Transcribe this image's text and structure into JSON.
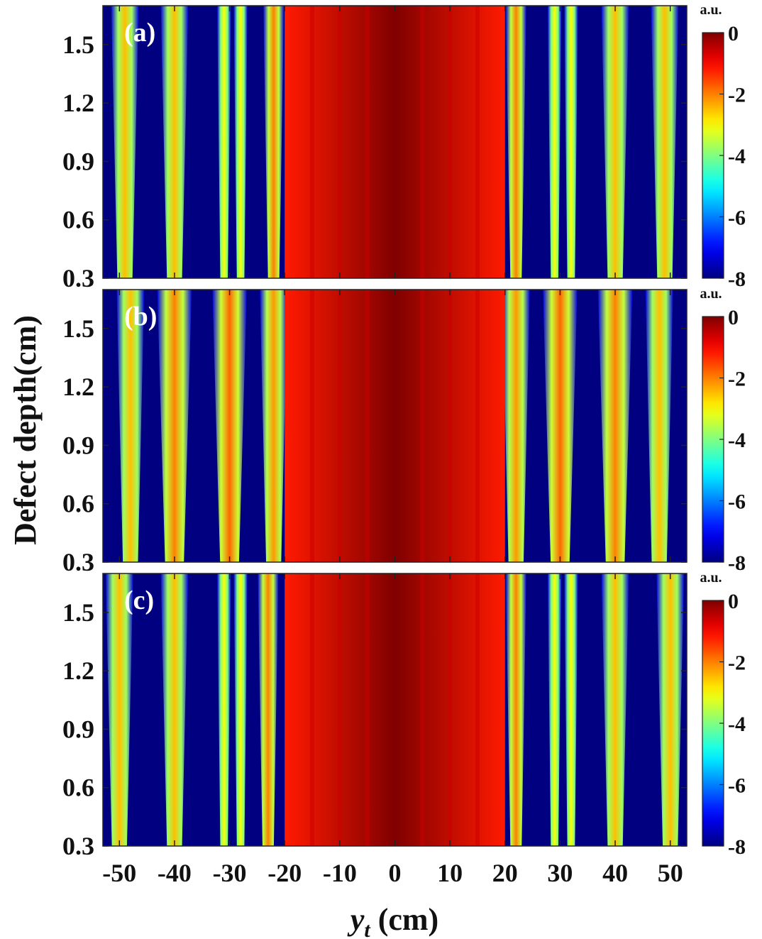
{
  "chart_data": {
    "type": "heatmap",
    "ylabel": "Defect depth(cm)",
    "xlabel_main": "y",
    "xlabel_sub": "t",
    "xlabel_unit": " (cm)",
    "xlim": [
      -53,
      53
    ],
    "ylim": [
      0.3,
      1.7
    ],
    "x_ticks": [
      "-50",
      "-40",
      "-30",
      "-20",
      "-10",
      "0",
      "10",
      "20",
      "30",
      "40",
      "50"
    ],
    "y_ticks": [
      "0.3",
      "0.6",
      "0.9",
      "1.2",
      "1.5"
    ],
    "colorbar": {
      "unit": "a.u.",
      "range": [
        -8,
        0
      ],
      "ticks": [
        "0",
        "-2",
        "-4",
        "-6",
        "-8"
      ],
      "colormap": "jet"
    },
    "panels": [
      {
        "label": "(a)",
        "bands": [
          {
            "x": -49,
            "width": 4,
            "level": -2.5
          },
          {
            "x": -40,
            "width": 4,
            "level": -2.5
          },
          {
            "x": -31,
            "width": 2,
            "level": -3
          },
          {
            "x": -28,
            "width": 2,
            "level": -3
          },
          {
            "x": -22,
            "width": 3,
            "level": -2.0
          },
          {
            "x": -10,
            "width": 3,
            "level": -1.0
          },
          {
            "x": 10,
            "width": 3,
            "level": -1.0
          },
          {
            "x": 22,
            "width": 3,
            "level": -2.0
          },
          {
            "x": 29,
            "width": 2,
            "level": -3
          },
          {
            "x": 32,
            "width": 2,
            "level": -3
          },
          {
            "x": 40,
            "width": 4,
            "level": -2.5
          },
          {
            "x": 49,
            "width": 4,
            "level": -2.5
          }
        ]
      },
      {
        "label": "(b)",
        "bands": [
          {
            "x": -48,
            "width": 4,
            "level": -2.5
          },
          {
            "x": -40,
            "width": 5,
            "level": -2.0
          },
          {
            "x": -30,
            "width": 5,
            "level": -1.8
          },
          {
            "x": -22,
            "width": 4,
            "level": -2.2
          },
          {
            "x": -10,
            "width": 3,
            "level": -1.0
          },
          {
            "x": 10,
            "width": 3,
            "level": -1.0
          },
          {
            "x": 22,
            "width": 4,
            "level": -2.2
          },
          {
            "x": 30,
            "width": 5,
            "level": -1.8
          },
          {
            "x": 40,
            "width": 5,
            "level": -2.0
          },
          {
            "x": 48,
            "width": 4,
            "level": -2.5
          }
        ]
      },
      {
        "label": "(c)",
        "bands": [
          {
            "x": -50,
            "width": 4,
            "level": -2.5
          },
          {
            "x": -40,
            "width": 4,
            "level": -2.5
          },
          {
            "x": -31,
            "width": 2,
            "level": -3
          },
          {
            "x": -28,
            "width": 2,
            "level": -3
          },
          {
            "x": -23,
            "width": 3,
            "level": -2.0
          },
          {
            "x": -11,
            "width": 3,
            "level": -1.0
          },
          {
            "x": 11,
            "width": 3,
            "level": -1.0
          },
          {
            "x": 22,
            "width": 3,
            "level": -2.0
          },
          {
            "x": 29,
            "width": 2,
            "level": -3
          },
          {
            "x": 32,
            "width": 2,
            "level": -3
          },
          {
            "x": 40,
            "width": 4,
            "level": -2.5
          },
          {
            "x": 50,
            "width": 4,
            "level": -2.5
          }
        ]
      }
    ],
    "central_region": {
      "x_start": -20,
      "x_end": 20,
      "level_edge": -1.2,
      "level_center": 0
    }
  }
}
